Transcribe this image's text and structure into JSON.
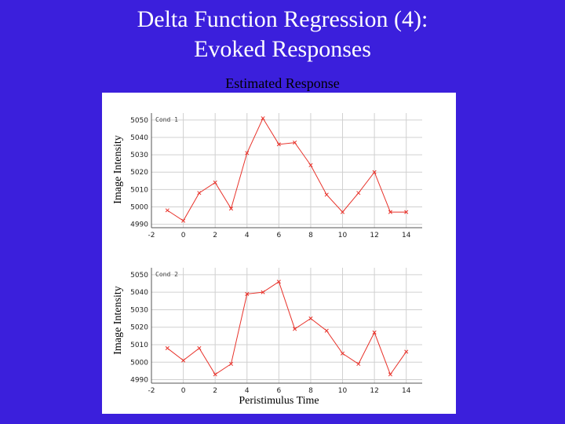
{
  "slide": {
    "title_line1": "Delta Function Regression (4):",
    "title_line2": "Evoked Responses",
    "subtitle": "Estimated Response",
    "xlabel": "Peristimulus Time"
  },
  "colors": {
    "background": "#3b1fdc",
    "title": "#ffffff",
    "series": "#e8322a",
    "grid": "#d0d0d0"
  },
  "chart_data": [
    {
      "type": "line",
      "panel_label": "Cond 1",
      "ylabel": "Image Intensity",
      "xlabel": "",
      "xlim": [
        -2,
        15
      ],
      "ylim": [
        4988,
        5054
      ],
      "xticks": [
        -2,
        0,
        2,
        4,
        6,
        8,
        10,
        12,
        14
      ],
      "yticks": [
        4990,
        5000,
        5010,
        5020,
        5030,
        5040,
        5050
      ],
      "grid": true,
      "marker": "x",
      "x": [
        -1,
        0,
        1,
        2,
        3,
        4,
        5,
        6,
        7,
        8,
        9,
        10,
        11,
        12,
        13,
        14
      ],
      "y": [
        4998,
        4992,
        5008,
        5014,
        4999,
        5031,
        5051,
        5036,
        5037,
        5024,
        5007,
        4997,
        5008,
        5020,
        4997,
        4997
      ]
    },
    {
      "type": "line",
      "panel_label": "Cond 2",
      "ylabel": "Image Intensity",
      "xlabel": "Peristimulus Time",
      "xlim": [
        -2,
        15
      ],
      "ylim": [
        4988,
        5054
      ],
      "xticks": [
        -2,
        0,
        2,
        4,
        6,
        8,
        10,
        12,
        14
      ],
      "yticks": [
        4990,
        5000,
        5010,
        5020,
        5030,
        5040,
        5050
      ],
      "grid": true,
      "marker": "x",
      "x": [
        -1,
        0,
        1,
        2,
        3,
        4,
        5,
        6,
        7,
        8,
        9,
        10,
        11,
        12,
        13,
        14
      ],
      "y": [
        5008,
        5001,
        5008,
        4993,
        4999,
        5039,
        5040,
        5046,
        5019,
        5025,
        5018,
        5005,
        4999,
        5017,
        4993,
        5006
      ]
    }
  ]
}
